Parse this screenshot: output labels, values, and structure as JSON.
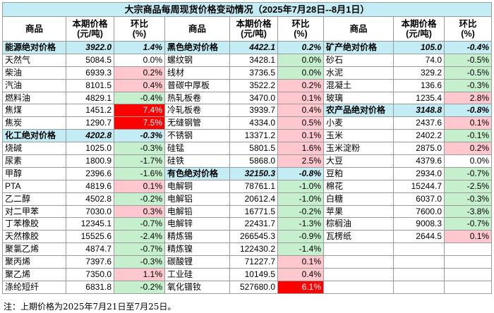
{
  "title": "大宗商品每周现货价格变动情况（2025年7月28日--8月1日）",
  "headers": [
    "商品",
    "本期价格\n(元/吨)",
    "环比\n(%)"
  ],
  "note": "注：上期价格为2025年7月21日至7月25日。",
  "rows": [
    [
      {
        "n": "能源绝对价格",
        "v": "3922.0",
        "c": "1.4%",
        "s": "grp"
      },
      {
        "n": "黑色绝对价格",
        "v": "4422.1",
        "c": "0.2%",
        "s": "grp"
      },
      {
        "n": "矿产绝对价格",
        "v": "105.0",
        "c": "-0.4%",
        "s": "grp"
      }
    ],
    [
      {
        "n": "天然气",
        "v": "5084.5",
        "c": "0.0%",
        "s": ""
      },
      {
        "n": "螺纹钢",
        "v": "3428.1",
        "c": "0.0%",
        "s": "g"
      },
      {
        "n": "砂石",
        "v": "74.0",
        "c": "-0.5%",
        "s": "g"
      }
    ],
    [
      {
        "n": "柴油",
        "v": "6939.3",
        "c": "0.2%",
        "s": "r"
      },
      {
        "n": "线材",
        "v": "3736.5",
        "c": "0.0%",
        "s": "g"
      },
      {
        "n": "水泥",
        "v": "329.2",
        "c": "-0.5%",
        "s": "g"
      }
    ],
    [
      {
        "n": "汽油",
        "v": "8101.5",
        "c": "0.4%",
        "s": "r"
      },
      {
        "n": "普碳中厚板",
        "v": "3522.2",
        "c": "0.2%",
        "s": "r"
      },
      {
        "n": "混凝土",
        "v": "136.6",
        "c": "-0.3%",
        "s": "g"
      }
    ],
    [
      {
        "n": "燃料油",
        "v": "4829.1",
        "c": "-0.4%",
        "s": "g"
      },
      {
        "n": "热轧板卷",
        "v": "3470.0",
        "c": "0.1%",
        "s": "r"
      },
      {
        "n": "玻璃",
        "v": "1235.4",
        "c": "2.8%",
        "s": "r"
      }
    ],
    [
      {
        "n": "焦煤",
        "v": "1451.2",
        "c": "7.4%",
        "s": "rr"
      },
      {
        "n": "冷轧板卷",
        "v": "3939.7",
        "c": "0.4%",
        "s": "r"
      },
      {
        "n": "农产品绝对价格",
        "v": "3148.8",
        "c": "-0.8%",
        "s": "grp"
      }
    ],
    [
      {
        "n": "焦炭",
        "v": "1290.7",
        "c": "7.5%",
        "s": "rr"
      },
      {
        "n": "无缝钢管",
        "v": "4334.0",
        "c": "0.5%",
        "s": "r"
      },
      {
        "n": "小麦",
        "v": "2437.6",
        "c": "0.1%",
        "s": "r"
      }
    ],
    [
      {
        "n": "化工绝对价格",
        "v": "4202.8",
        "c": "-0.3%",
        "s": "grp"
      },
      {
        "n": "不锈钢",
        "v": "13371.2",
        "c": "0.1%",
        "s": "r"
      },
      {
        "n": "玉米",
        "v": "2402.2",
        "c": "-0.1%",
        "s": "g"
      }
    ],
    [
      {
        "n": "烧碱",
        "v": "1025.0",
        "c": "-0.3%",
        "s": "g"
      },
      {
        "n": "硅锰",
        "v": "5801.5",
        "c": "1.6%",
        "s": "r"
      },
      {
        "n": "玉米淀粉",
        "v": "2875.0",
        "c": "0.2%",
        "s": "r"
      }
    ],
    [
      {
        "n": "尿素",
        "v": "1800.9",
        "c": "-1.7%",
        "s": "g"
      },
      {
        "n": "硅铁",
        "v": "5868.0",
        "c": "2.5%",
        "s": "r"
      },
      {
        "n": "大豆",
        "v": "4379.6",
        "c": "0.0%",
        "s": ""
      }
    ],
    [
      {
        "n": "甲醇",
        "v": "2396.6",
        "c": "-1.6%",
        "s": "g"
      },
      {
        "n": "有色绝对价格",
        "v": "32150.3",
        "c": "-0.8%",
        "s": "grp"
      },
      {
        "n": "豆粕",
        "v": "2934.0",
        "c": "-0.7%",
        "s": "g"
      }
    ],
    [
      {
        "n": "PTA",
        "v": "4819.6",
        "c": "0.1%",
        "s": "r"
      },
      {
        "n": "电解铜",
        "v": "78761.1",
        "c": "-1.0%",
        "s": "g"
      },
      {
        "n": "棉花",
        "v": "15244.7",
        "c": "-2.5%",
        "s": "g"
      }
    ],
    [
      {
        "n": "乙二醇",
        "v": "4502.8",
        "c": "-0.2%",
        "s": "g"
      },
      {
        "n": "电解铝",
        "v": "20612.4",
        "c": "-1.0%",
        "s": "g"
      },
      {
        "n": "白糖",
        "v": "6037.0",
        "c": "-0.3%",
        "s": "g"
      }
    ],
    [
      {
        "n": "对二甲苯",
        "v": "7030.0",
        "c": "0.3%",
        "s": "r"
      },
      {
        "n": "电解铅",
        "v": "16771.5",
        "c": "-0.2%",
        "s": "g"
      },
      {
        "n": "苹果",
        "v": "7600.0",
        "c": "-3.8%",
        "s": "g"
      }
    ],
    [
      {
        "n": "丁苯橡胶",
        "v": "12345.1",
        "c": "-0.7%",
        "s": "g"
      },
      {
        "n": "电解锌",
        "v": "22431.7",
        "c": "-1.3%",
        "s": "g"
      },
      {
        "n": "棕榈油",
        "v": "9008.3",
        "c": "-0.7%",
        "s": "g"
      }
    ],
    [
      {
        "n": "天然橡胶",
        "v": "15525.6",
        "c": "-2.4%",
        "s": "g"
      },
      {
        "n": "精炼锡",
        "v": "266545.3",
        "c": "-0.9%",
        "s": "g"
      },
      {
        "n": "瓦楞纸",
        "v": "2644.5",
        "c": "0.1%",
        "s": "r"
      }
    ],
    [
      {
        "n": "聚氯乙烯",
        "v": "4874.7",
        "c": "-0.7%",
        "s": "g"
      },
      {
        "n": "精炼镍",
        "v": "122430.2",
        "c": "-1.4%",
        "s": "g"
      },
      {
        "n": "",
        "v": "",
        "c": "",
        "s": ""
      }
    ],
    [
      {
        "n": "聚丙烯",
        "v": "7397.6",
        "c": "-0.3%",
        "s": "g"
      },
      {
        "n": "碳酸锂",
        "v": "71227.7",
        "c": "0.1%",
        "s": "r"
      },
      {
        "n": "",
        "v": "",
        "c": "",
        "s": ""
      }
    ],
    [
      {
        "n": "聚乙烯",
        "v": "7350.0",
        "c": "1.1%",
        "s": "r"
      },
      {
        "n": "工业硅",
        "v": "10149.5",
        "c": "0.4%",
        "s": "r"
      },
      {
        "n": "",
        "v": "",
        "c": "",
        "s": ""
      }
    ],
    [
      {
        "n": "涤纶短纤",
        "v": "6831.8",
        "c": "-0.2%",
        "s": "g"
      },
      {
        "n": "氧化镨钕",
        "v": "527680.0",
        "c": "6.1%",
        "s": "rr"
      },
      {
        "n": "",
        "v": "",
        "c": "",
        "s": ""
      }
    ]
  ]
}
